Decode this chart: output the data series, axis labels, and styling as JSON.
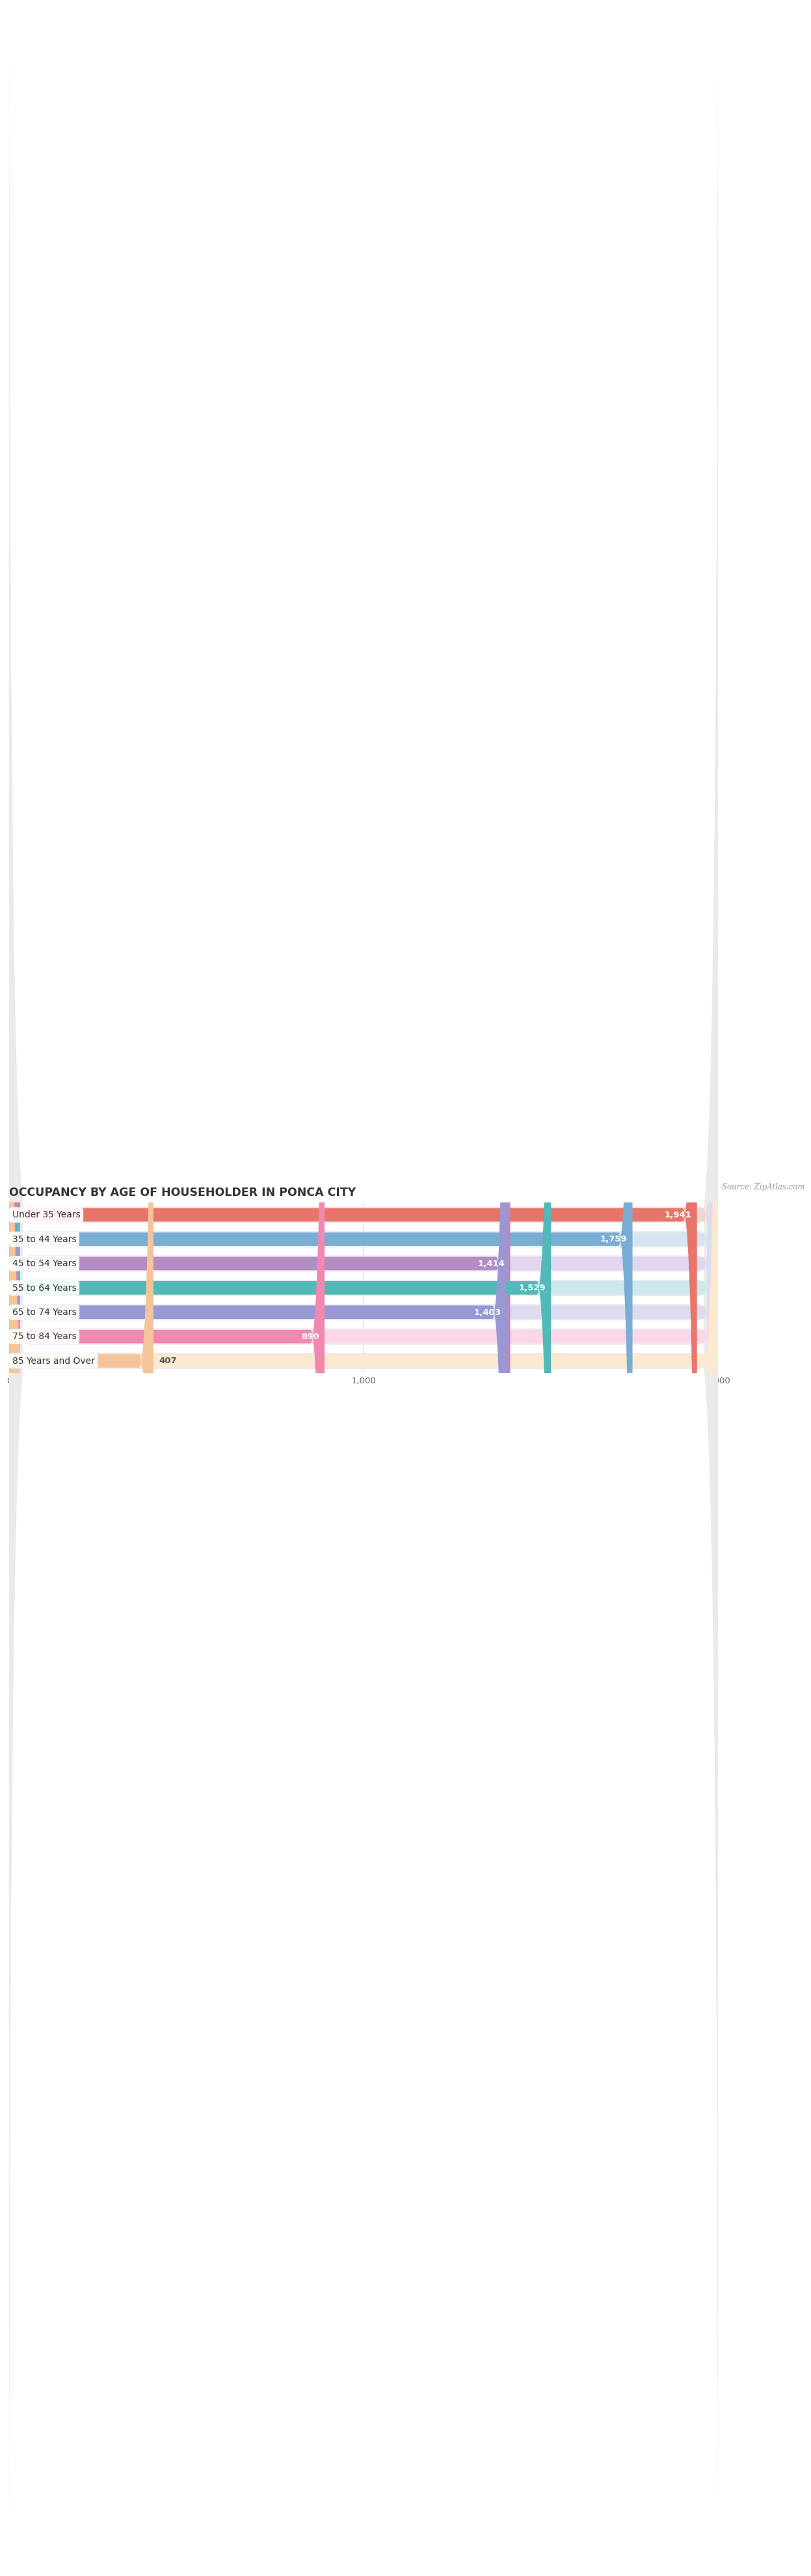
{
  "title": "OCCUPANCY BY AGE OF HOUSEHOLDER IN PONCA CITY",
  "source": "Source: ZipAtlas.com",
  "categories": [
    "Under 35 Years",
    "35 to 44 Years",
    "45 to 54 Years",
    "55 to 64 Years",
    "65 to 74 Years",
    "75 to 84 Years",
    "85 Years and Over"
  ],
  "values": [
    1941,
    1759,
    1414,
    1529,
    1403,
    890,
    407
  ],
  "bar_colors": [
    "#E8756A",
    "#7AADD4",
    "#B48CC4",
    "#52B8B8",
    "#9898D4",
    "#F088B0",
    "#F5C49A"
  ],
  "bg_colors": [
    "#EED8D5",
    "#D5E4F0",
    "#E2D5EE",
    "#CCE8EC",
    "#DCDCF0",
    "#FAD8EA",
    "#FDE8D0"
  ],
  "row_bg_color": "#EAEAEA",
  "xlim": [
    0,
    2000
  ],
  "xticks": [
    0,
    1000,
    2000
  ],
  "bar_height": 0.55,
  "fig_bg_color": "#ffffff",
  "title_fontsize": 12.5,
  "label_fontsize": 10,
  "value_fontsize": 9.5,
  "value_inside_threshold": 600
}
